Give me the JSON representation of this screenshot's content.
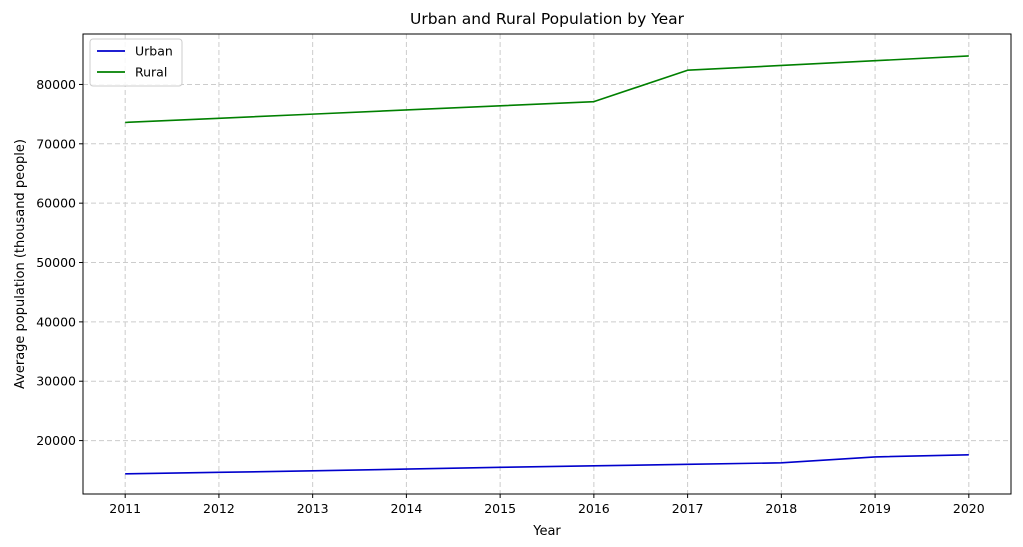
{
  "chart_data": {
    "type": "line",
    "title": "Urban and Rural Population by Year",
    "xlabel": "Year",
    "ylabel": "Average population (thousand people)",
    "x": [
      2011,
      2012,
      2013,
      2014,
      2015,
      2016,
      2017,
      2018,
      2019,
      2020
    ],
    "xticks": [
      "2011",
      "2012",
      "2013",
      "2014",
      "2015",
      "2016",
      "2017",
      "2018",
      "2019",
      "2020"
    ],
    "yticks": [
      20000,
      30000,
      40000,
      50000,
      60000,
      70000,
      80000
    ],
    "ylim": [
      11000,
      88500
    ],
    "xlim": [
      2010.55,
      2020.45
    ],
    "grid": true,
    "legend_position": "top-left",
    "series": [
      {
        "name": "Urban",
        "color": "#0000cc",
        "values": [
          14400,
          14650,
          14900,
          15200,
          15500,
          15750,
          16000,
          16250,
          17250,
          17600
        ]
      },
      {
        "name": "Rural",
        "color": "#008000",
        "values": [
          73600,
          74300,
          75000,
          75700,
          76400,
          77100,
          82400,
          83200,
          84000,
          84800
        ]
      }
    ]
  }
}
